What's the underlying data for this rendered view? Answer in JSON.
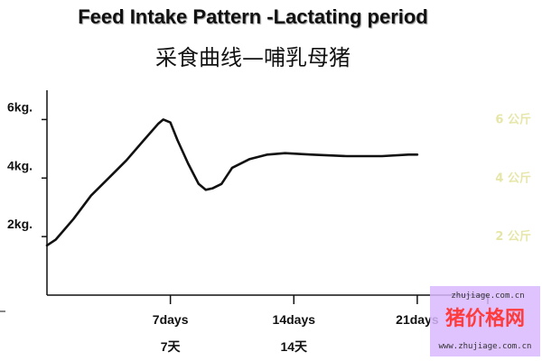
{
  "header": {
    "title": "Feed Intake Pattern -Lactating period",
    "subtitle": "采食曲线—哺乳母猪"
  },
  "chart_data": {
    "type": "line",
    "title": "Feed Intake Pattern -Lactating period",
    "subtitle": "采食曲线—哺乳母猪",
    "xlim": [
      0,
      25
    ],
    "ylim": [
      0,
      7
    ],
    "y_ticks": [
      {
        "value": 2,
        "label": "2kg."
      },
      {
        "value": 4,
        "label": "4kg."
      },
      {
        "value": 6,
        "label": "6kg."
      }
    ],
    "x_ticks": [
      {
        "value": 7,
        "label": "7days",
        "label_cn": "7天"
      },
      {
        "value": 14,
        "label": "14days",
        "label_cn": "14天"
      },
      {
        "value": 21,
        "label": "21days",
        "label_cn": ""
      }
    ],
    "right_labels": [
      {
        "value": 6,
        "label": "6 公斤"
      },
      {
        "value": 4,
        "label": "4 公斤"
      },
      {
        "value": 2,
        "label": "2 公斤"
      }
    ],
    "series": [
      {
        "color": "#111111",
        "x": [
          0,
          0.5,
          1.5,
          2.5,
          3.5,
          4.5,
          5.5,
          6.3,
          6.6,
          7.0,
          7.4,
          8.0,
          8.6,
          9.0,
          9.4,
          9.9,
          10.5,
          11.5,
          12.5,
          13.5,
          15,
          17,
          19,
          20.5,
          21
        ],
        "y": [
          1.7,
          1.9,
          2.6,
          3.4,
          4.0,
          4.6,
          5.3,
          5.85,
          6.0,
          5.9,
          5.3,
          4.5,
          3.8,
          3.6,
          3.65,
          3.8,
          4.35,
          4.65,
          4.8,
          4.85,
          4.8,
          4.75,
          4.75,
          4.8,
          4.8
        ]
      }
    ]
  },
  "watermark": {
    "text": "猪价格网",
    "url": "www.zhujiage.com.cn",
    "faint": "zhujiage.com.cn"
  },
  "colors": {
    "line": "#111111",
    "axis": "#111111",
    "right_labels": "#e6e6a8",
    "watermark_bg": "#d9b8ff",
    "watermark_text": "#ff3b3b"
  }
}
